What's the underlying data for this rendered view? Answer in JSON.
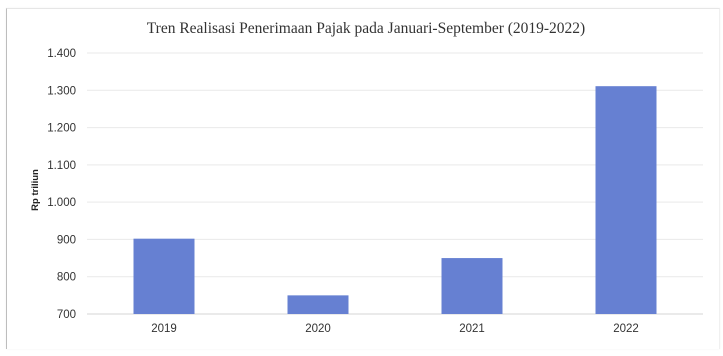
{
  "chart_data": {
    "type": "bar",
    "title": "Tren Realisasi Penerimaan Pajak pada Januari-September (2019-2022)",
    "xlabel": "",
    "ylabel": "Rp triliun",
    "categories": [
      "2019",
      "2020",
      "2021",
      "2022"
    ],
    "values": [
      902,
      750,
      850,
      1311
    ],
    "ylim": [
      700,
      1400
    ],
    "yticks": [
      700,
      800,
      900,
      1000,
      1100,
      1200,
      1300,
      1400
    ],
    "ytick_labels": [
      "700",
      "800",
      "900",
      "1.000",
      "1.100",
      "1.200",
      "1.300",
      "1.400"
    ],
    "grid": true,
    "legend": "none"
  },
  "colors": {
    "bar": "#6680d2",
    "grid": "#e9e9e9",
    "baseline": "#d6d6d6",
    "text": "#333333"
  }
}
